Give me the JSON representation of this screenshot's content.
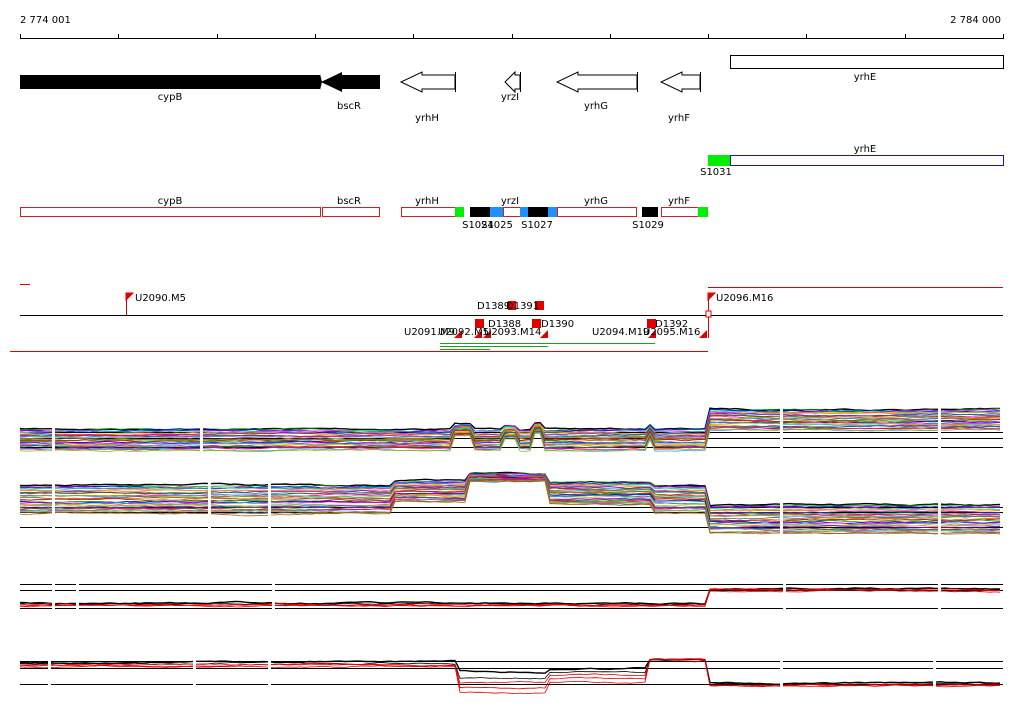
{
  "ruler": {
    "start": "2 774 001",
    "end": "2 784 000"
  },
  "genes": [
    "cypB",
    "bscR",
    "yrhH",
    "yrzI",
    "yrhG",
    "yrhF",
    "yrhE"
  ],
  "transcript": {
    "gene": "yrhE",
    "segment": "S1031"
  },
  "segments": {
    "genes": [
      "cypB",
      "bscR",
      "yrhH",
      "yrzI",
      "yrhG",
      "yrhF"
    ],
    "labels": [
      "S1024",
      "S1025",
      "S1027",
      "S1029"
    ]
  },
  "units": [
    "U2090.M5",
    "U2096.M16",
    "U2091.M9",
    "U2092.M5",
    "U2093.M14",
    "U2094.M19",
    "U2095.M16"
  ],
  "downshifts": [
    "D1389",
    "D1391",
    "D1388",
    "D1390",
    "D1392"
  ]
}
